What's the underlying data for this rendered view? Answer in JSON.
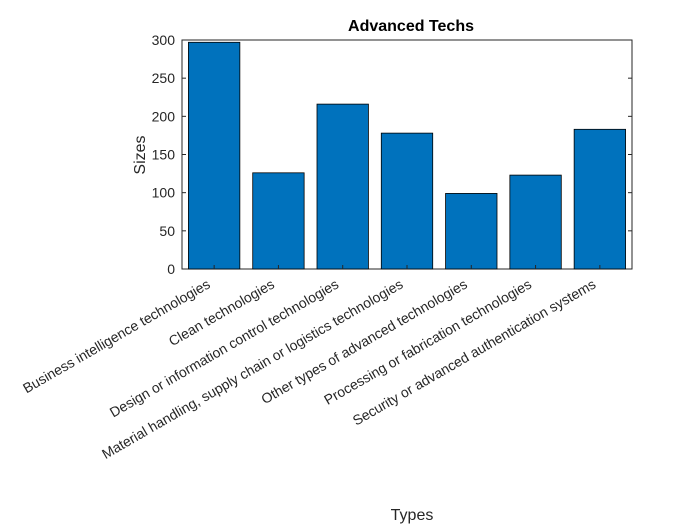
{
  "chart_data": {
    "type": "bar",
    "title": "Advanced Techs",
    "xlabel": "Types",
    "ylabel": "Sizes",
    "categories": [
      "Business intelligence technologies",
      "Clean technologies",
      "Design or information control technologies",
      "Material handling, supply chain or logistics technologies",
      "Other types of advanced technologies",
      "Processing or fabrication technologies",
      "Security or advanced authentication systems"
    ],
    "values": [
      297,
      126,
      216,
      178,
      99,
      123,
      183
    ],
    "ylim": [
      0,
      300
    ],
    "yticks": [
      0,
      50,
      100,
      150,
      200,
      250,
      300
    ],
    "bar_color": "#0072BD",
    "grid": false,
    "legend": "none"
  }
}
